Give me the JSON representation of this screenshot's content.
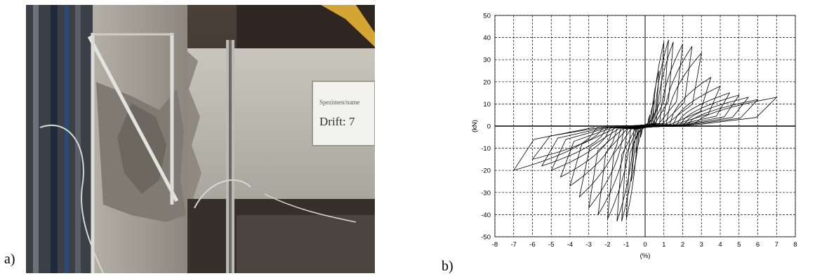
{
  "panels": {
    "a_label": "a)",
    "b_label": "b)"
  },
  "photo": {
    "sign_line1": "Spezimen/name",
    "sign_line2": "Drift: 7"
  },
  "chart_data": {
    "type": "line",
    "title": "",
    "xlabel": "(%)",
    "ylabel": "(kN)",
    "xlim": [
      -8,
      8
    ],
    "ylim": [
      -50,
      50
    ],
    "xticks": [
      -8,
      -7,
      -6,
      -5,
      -4,
      -3,
      -2,
      -1,
      0,
      1,
      2,
      3,
      4,
      5,
      6,
      7,
      8
    ],
    "yticks": [
      50,
      40,
      30,
      20,
      10,
      0,
      -10,
      -20,
      -30,
      -40,
      -50
    ],
    "grid": true,
    "legend": "none",
    "series": [
      {
        "description_peaks": "hysteresis cycle peaks (drift %, force)",
        "cycles": [
          [
            0.25,
            5,
            -0.25,
            -5
          ],
          [
            0.5,
            12,
            -0.5,
            -12
          ],
          [
            0.75,
            25,
            -0.75,
            -25
          ],
          [
            1.0,
            38,
            -1.0,
            -42
          ],
          [
            1.25,
            39,
            -1.25,
            -43
          ],
          [
            1.5,
            38,
            -1.5,
            -43
          ],
          [
            2.0,
            37,
            -2.0,
            -42
          ],
          [
            2.5,
            36,
            -2.5,
            -40
          ],
          [
            3.0,
            33,
            -3.0,
            -37
          ],
          [
            3.5,
            22,
            -3.5,
            -32
          ],
          [
            4.0,
            18,
            -4.0,
            -27
          ],
          [
            4.5,
            15,
            -4.5,
            -23
          ],
          [
            5.0,
            14,
            -5.0,
            -20
          ],
          [
            5.5,
            13,
            -5.5,
            -18
          ],
          [
            6.0,
            12,
            -6.0,
            -15
          ],
          [
            7.0,
            13,
            -7.0,
            -20
          ]
        ]
      }
    ]
  }
}
